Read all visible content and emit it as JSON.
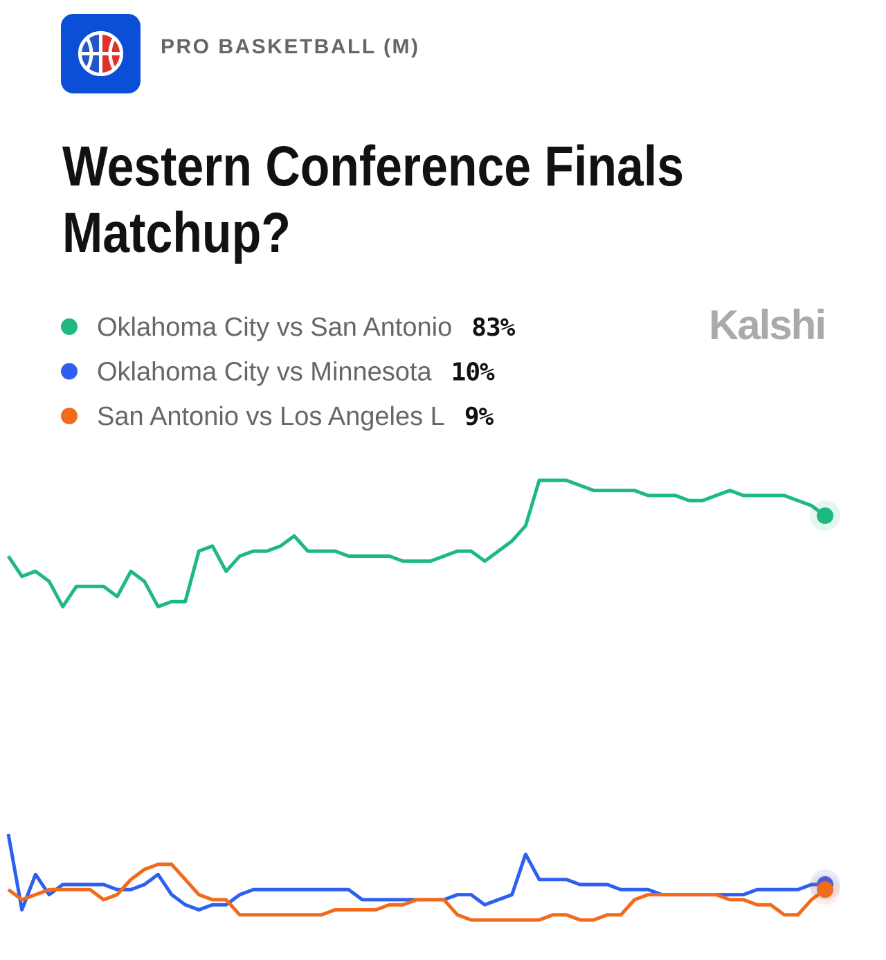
{
  "category": "PRO BASKETBALL (M)",
  "brand": "Kalshi",
  "chart_data": {
    "type": "line",
    "title": "Western Conference Finals Matchup?",
    "title_lines": [
      "Western Conference Finals",
      "Matchup?"
    ],
    "ylim": [
      0,
      100
    ],
    "series": [
      {
        "name": "Oklahoma City vs San Antonio",
        "label": "83%",
        "color": "#1eb980",
        "values": [
          75,
          71,
          72,
          70,
          65,
          69,
          69,
          69,
          67,
          72,
          70,
          65,
          66,
          66,
          76,
          77,
          72,
          75,
          76,
          76,
          77,
          79,
          76,
          76,
          76,
          75,
          75,
          75,
          75,
          74,
          74,
          74,
          75,
          76,
          76,
          74,
          76,
          78,
          81,
          90,
          90,
          90,
          89,
          88,
          88,
          88,
          88,
          87,
          87,
          87,
          86,
          86,
          87,
          88,
          87,
          87,
          87,
          87,
          86,
          85,
          83
        ]
      },
      {
        "name": "Oklahoma City vs Minnesota",
        "label": "10%",
        "color": "#2e5ff0",
        "values": [
          20,
          5,
          12,
          8,
          10,
          10,
          10,
          10,
          9,
          9,
          10,
          12,
          8,
          6,
          5,
          6,
          6,
          8,
          9,
          9,
          9,
          9,
          9,
          9,
          9,
          9,
          7,
          7,
          7,
          7,
          7,
          7,
          7,
          8,
          8,
          6,
          7,
          8,
          16,
          11,
          11,
          11,
          10,
          10,
          10,
          9,
          9,
          9,
          8,
          8,
          8,
          8,
          8,
          8,
          8,
          9,
          9,
          9,
          9,
          10,
          10
        ]
      },
      {
        "name": "San Antonio vs Los Angeles L",
        "label": "9%",
        "color": "#f26a1b",
        "values": [
          9,
          7,
          8,
          9,
          9,
          9,
          9,
          7,
          8,
          11,
          13,
          14,
          14,
          11,
          8,
          7,
          7,
          4,
          4,
          4,
          4,
          4,
          4,
          4,
          5,
          5,
          5,
          5,
          6,
          6,
          7,
          7,
          7,
          4,
          3,
          3,
          3,
          3,
          3,
          3,
          4,
          4,
          3,
          3,
          4,
          4,
          7,
          8,
          8,
          8,
          8,
          8,
          8,
          7,
          7,
          6,
          6,
          4,
          4,
          7,
          9
        ]
      }
    ]
  }
}
